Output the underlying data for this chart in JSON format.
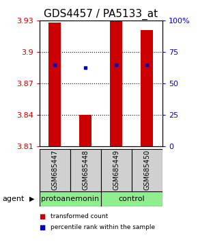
{
  "title": "GDS4457 / PA5133_at",
  "samples": [
    "GSM685447",
    "GSM685448",
    "GSM685449",
    "GSM685450"
  ],
  "bar_bottoms": [
    3.81,
    3.81,
    3.81,
    3.81
  ],
  "bar_tops": [
    3.928,
    3.84,
    3.93,
    3.921
  ],
  "percentile_values": [
    3.888,
    3.885,
    3.888,
    3.888
  ],
  "y_min": 3.81,
  "y_max": 3.93,
  "y_ticks_left": [
    3.81,
    3.84,
    3.87,
    3.9,
    3.93
  ],
  "y_ticks_right": [
    0,
    25,
    50,
    75,
    100
  ],
  "bar_color": "#cc0000",
  "dot_color": "#0000cc",
  "group_labels": [
    "protoanemonin",
    "control"
  ],
  "group_colors": [
    "#90ee90",
    "#90ee90"
  ],
  "agent_label": "agent",
  "legend_red": "transformed count",
  "legend_blue": "percentile rank within the sample",
  "bar_width": 0.4,
  "title_fontsize": 11,
  "tick_fontsize": 8,
  "sample_fontsize": 7,
  "group_fontsize": 8
}
